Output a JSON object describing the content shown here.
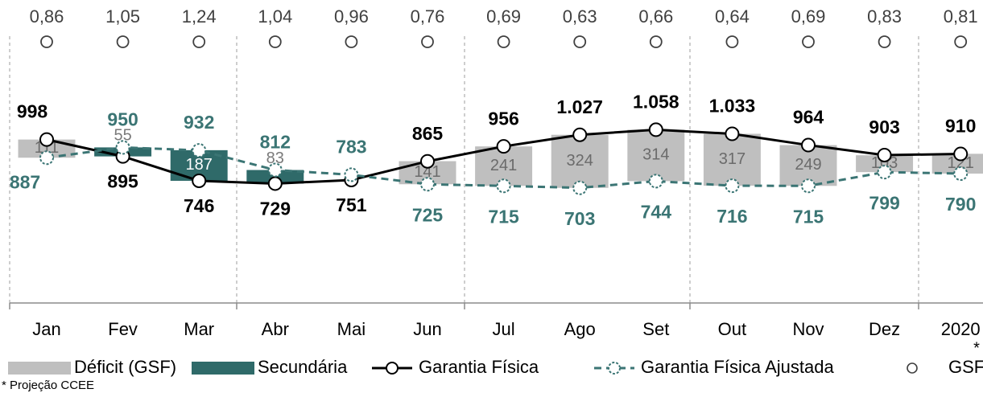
{
  "chart_data": {
    "type": "combo",
    "categories": [
      "Jan",
      "Fev",
      "Mar",
      "Abr",
      "Mai",
      "Jun",
      "Jul",
      "Ago",
      "Set",
      "Out",
      "Nov",
      "Dez",
      "2020"
    ],
    "category_note": "*",
    "footnote": "* Projeção CCEE",
    "ylim": [
      0,
      1850
    ],
    "series": [
      {
        "name": "Déficit (GSF)",
        "type": "bar",
        "color": "#bfbfbf",
        "label_color": "#6b6b6b",
        "values": [
          111,
          null,
          null,
          null,
          null,
          141,
          241,
          324,
          314,
          317,
          249,
          103,
          121
        ]
      },
      {
        "name": "Secundária",
        "type": "bar",
        "color": "#2f6a69",
        "label_color": "#7a7a7a",
        "values": [
          null,
          55,
          187,
          83,
          null,
          null,
          null,
          null,
          null,
          null,
          null,
          null,
          null
        ]
      },
      {
        "name": "Garantia Física",
        "type": "line",
        "color": "#000000",
        "values": [
          998,
          895,
          746,
          729,
          751,
          865,
          956,
          1027,
          1058,
          1033,
          964,
          903,
          910
        ],
        "value_labels": [
          "998",
          "895",
          "746",
          "729",
          "751",
          "865",
          "956",
          "1.027",
          "1.058",
          "1.033",
          "964",
          "903",
          "910"
        ]
      },
      {
        "name": "Garantia Física Ajustada",
        "type": "line",
        "dashed": true,
        "color": "#3b7574",
        "values": [
          887,
          950,
          932,
          812,
          783,
          725,
          715,
          703,
          744,
          716,
          715,
          799,
          790
        ]
      },
      {
        "name": "GSF",
        "type": "marker",
        "color": "#404040",
        "values": [
          0.86,
          1.05,
          1.24,
          1.04,
          0.96,
          0.76,
          0.69,
          0.63,
          0.66,
          0.64,
          0.69,
          0.83,
          0.81
        ],
        "value_labels": [
          "0,86",
          "1,05",
          "1,24",
          "1,04",
          "0,96",
          "0,76",
          "0,69",
          "0,63",
          "0,66",
          "0,64",
          "0,69",
          "0,83",
          "0,81"
        ]
      }
    ]
  }
}
